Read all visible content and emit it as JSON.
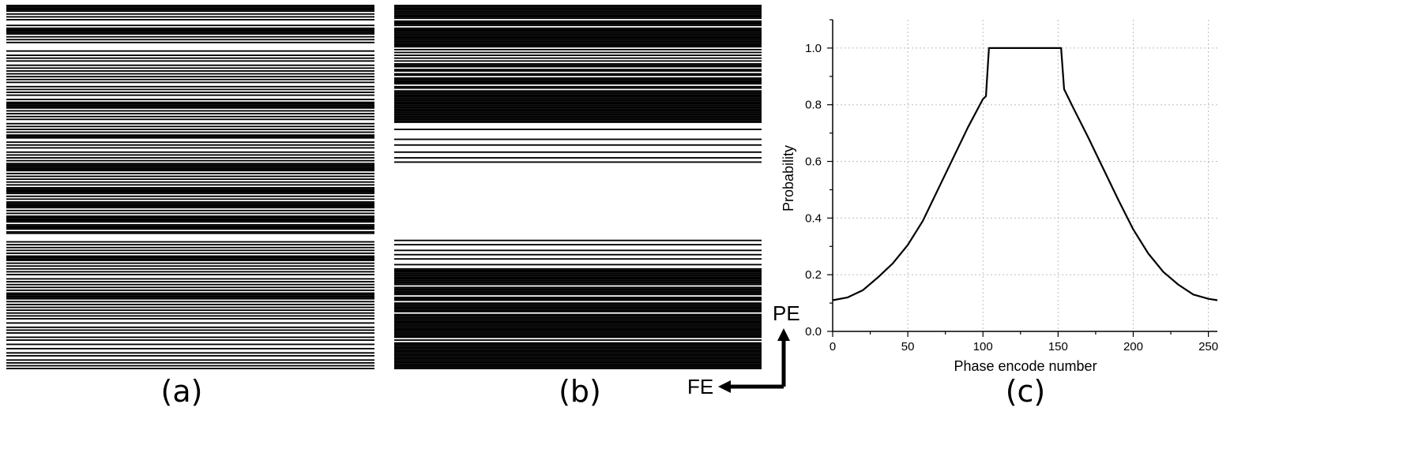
{
  "figure": {
    "label_a": "(a)",
    "label_b": "(b)",
    "label_c": "(c)",
    "arrow_pe": "PE",
    "arrow_fe": "FE"
  },
  "mask_a": {
    "rows_total": 256,
    "sampled_rows": [
      0,
      1,
      2,
      3,
      4,
      6,
      8,
      10,
      14,
      16,
      17,
      18,
      19,
      20,
      22,
      24,
      26,
      32,
      35,
      37,
      39,
      42,
      44,
      46,
      48,
      50,
      52,
      54,
      57,
      59,
      61,
      63,
      66,
      68,
      69,
      70,
      71,
      72,
      74,
      76,
      78,
      80,
      83,
      85,
      87,
      89,
      91,
      92,
      93,
      96,
      98,
      100,
      103,
      105,
      107,
      109,
      111,
      112,
      113,
      114,
      115,
      116,
      118,
      120,
      122,
      124,
      126,
      128,
      129,
      130,
      131,
      132,
      134,
      136,
      138,
      139,
      140,
      141,
      142,
      144,
      146,
      148,
      149,
      150,
      151,
      152,
      154,
      155,
      156,
      157,
      159,
      160,
      166,
      168,
      170,
      172,
      174,
      176,
      177,
      178,
      179,
      181,
      183,
      185,
      187,
      189,
      192,
      194,
      196,
      198,
      200,
      202,
      203,
      204,
      205,
      206,
      208,
      210,
      212,
      214,
      216,
      218,
      220,
      223,
      226,
      228,
      230,
      233,
      235,
      238,
      241,
      244,
      246,
      249,
      251,
      253,
      255
    ]
  },
  "mask_b": {
    "rows_total": 256,
    "sampled_rows": [
      0,
      1,
      2,
      3,
      4,
      5,
      6,
      7,
      8,
      9,
      11,
      12,
      13,
      14,
      16,
      17,
      18,
      19,
      20,
      21,
      22,
      23,
      24,
      25,
      26,
      27,
      28,
      29,
      31,
      33,
      35,
      37,
      39,
      41,
      42,
      43,
      45,
      46,
      48,
      49,
      51,
      52,
      53,
      54,
      55,
      57,
      58,
      60,
      61,
      62,
      63,
      64,
      65,
      66,
      67,
      68,
      69,
      70,
      71,
      72,
      73,
      74,
      75,
      76,
      77,
      78,
      79,
      80,
      81,
      82,
      87,
      94,
      98,
      103,
      107,
      110,
      165,
      168,
      172,
      175,
      178,
      182,
      185,
      186,
      187,
      188,
      189,
      190,
      191,
      192,
      193,
      194,
      195,
      196,
      198,
      199,
      200,
      201,
      202,
      203,
      205,
      206,
      207,
      209,
      210,
      211,
      212,
      213,
      214,
      215,
      217,
      218,
      219,
      220,
      221,
      222,
      223,
      224,
      225,
      226,
      227,
      228,
      229,
      230,
      231,
      232,
      233,
      235,
      237,
      238,
      239,
      240,
      241,
      242,
      243,
      244,
      245,
      246,
      247,
      248,
      249,
      250,
      251,
      252,
      253,
      254,
      255
    ]
  },
  "chart_data": {
    "type": "line",
    "xlabel": "Phase encode number",
    "ylabel": "Probability",
    "xlim": [
      0,
      256
    ],
    "ylim": [
      0,
      1.1
    ],
    "x_ticks": [
      0,
      50,
      100,
      150,
      200,
      250
    ],
    "y_ticks": [
      0.0,
      0.2,
      0.4,
      0.6,
      0.8,
      1.0
    ],
    "x_tick_labels": [
      "0",
      "50",
      "100",
      "150",
      "200",
      "250"
    ],
    "y_tick_labels": [
      "0.0",
      "0.2",
      "0.4",
      "0.6",
      "0.8",
      "1.0"
    ],
    "grid": true,
    "series": [
      {
        "x": [
          0,
          10,
          20,
          30,
          40,
          50,
          60,
          70,
          80,
          90,
          100,
          102,
          104,
          110,
          120,
          130,
          140,
          150,
          152,
          154,
          160,
          170,
          180,
          190,
          200,
          210,
          220,
          230,
          240,
          250,
          256
        ],
        "y": [
          0.11,
          0.12,
          0.145,
          0.19,
          0.24,
          0.305,
          0.39,
          0.5,
          0.61,
          0.72,
          0.82,
          0.83,
          1.0,
          1.0,
          1.0,
          1.0,
          1.0,
          1.0,
          1.0,
          0.855,
          0.79,
          0.685,
          0.575,
          0.465,
          0.36,
          0.275,
          0.21,
          0.165,
          0.13,
          0.115,
          0.11
        ]
      }
    ]
  }
}
